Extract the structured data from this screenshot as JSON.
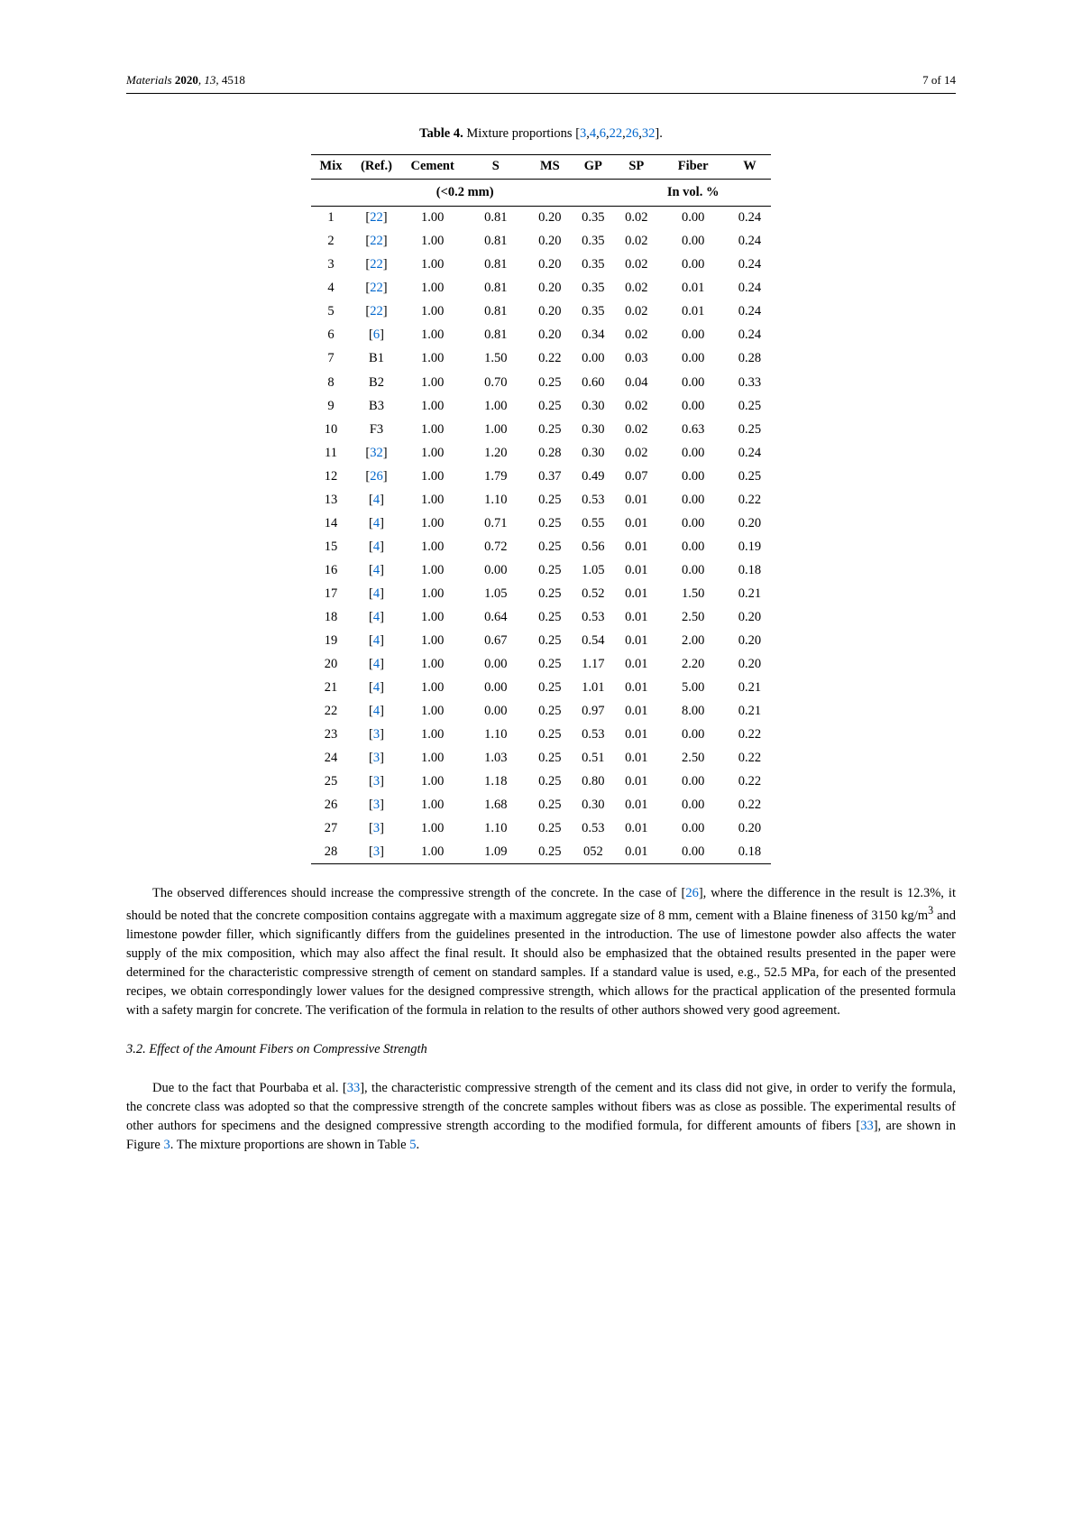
{
  "header": {
    "journal": "Materials",
    "year": "2020",
    "volume": "13",
    "article": "4518",
    "page": "7 of 14"
  },
  "table4": {
    "caption_prefix": "Table 4.",
    "caption_text": " Mixture proportions [",
    "caption_refs": [
      "3",
      "4",
      "6",
      "22",
      "26",
      "32"
    ],
    "caption_suffix": "].",
    "columns": [
      "Mix",
      "(Ref.)",
      "Cement",
      "S",
      "MS",
      "GP",
      "SP",
      "Fiber",
      "W"
    ],
    "subheader_left": "(<0.2 mm)",
    "subheader_right": "In vol. %",
    "rows": [
      {
        "mix": "1",
        "ref": "[22]",
        "ref_is_link": true,
        "cement": "1.00",
        "s": "0.81",
        "ms": "0.20",
        "gp": "0.35",
        "sp": "0.02",
        "fiber": "0.00",
        "w": "0.24"
      },
      {
        "mix": "2",
        "ref": "[22]",
        "ref_is_link": true,
        "cement": "1.00",
        "s": "0.81",
        "ms": "0.20",
        "gp": "0.35",
        "sp": "0.02",
        "fiber": "0.00",
        "w": "0.24"
      },
      {
        "mix": "3",
        "ref": "[22]",
        "ref_is_link": true,
        "cement": "1.00",
        "s": "0.81",
        "ms": "0.20",
        "gp": "0.35",
        "sp": "0.02",
        "fiber": "0.00",
        "w": "0.24"
      },
      {
        "mix": "4",
        "ref": "[22]",
        "ref_is_link": true,
        "cement": "1.00",
        "s": "0.81",
        "ms": "0.20",
        "gp": "0.35",
        "sp": "0.02",
        "fiber": "0.01",
        "w": "0.24"
      },
      {
        "mix": "5",
        "ref": "[22]",
        "ref_is_link": true,
        "cement": "1.00",
        "s": "0.81",
        "ms": "0.20",
        "gp": "0.35",
        "sp": "0.02",
        "fiber": "0.01",
        "w": "0.24"
      },
      {
        "mix": "6",
        "ref": "[6]",
        "ref_is_link": true,
        "cement": "1.00",
        "s": "0.81",
        "ms": "0.20",
        "gp": "0.34",
        "sp": "0.02",
        "fiber": "0.00",
        "w": "0.24"
      },
      {
        "mix": "7",
        "ref": "B1",
        "ref_is_link": false,
        "cement": "1.00",
        "s": "1.50",
        "ms": "0.22",
        "gp": "0.00",
        "sp": "0.03",
        "fiber": "0.00",
        "w": "0.28"
      },
      {
        "mix": "8",
        "ref": "B2",
        "ref_is_link": false,
        "cement": "1.00",
        "s": "0.70",
        "ms": "0.25",
        "gp": "0.60",
        "sp": "0.04",
        "fiber": "0.00",
        "w": "0.33"
      },
      {
        "mix": "9",
        "ref": "B3",
        "ref_is_link": false,
        "cement": "1.00",
        "s": "1.00",
        "ms": "0.25",
        "gp": "0.30",
        "sp": "0.02",
        "fiber": "0.00",
        "w": "0.25"
      },
      {
        "mix": "10",
        "ref": "F3",
        "ref_is_link": false,
        "cement": "1.00",
        "s": "1.00",
        "ms": "0.25",
        "gp": "0.30",
        "sp": "0.02",
        "fiber": "0.63",
        "w": "0.25"
      },
      {
        "mix": "11",
        "ref": "[32]",
        "ref_is_link": true,
        "cement": "1.00",
        "s": "1.20",
        "ms": "0.28",
        "gp": "0.30",
        "sp": "0.02",
        "fiber": "0.00",
        "w": "0.24"
      },
      {
        "mix": "12",
        "ref": "[26]",
        "ref_is_link": true,
        "cement": "1.00",
        "s": "1.79",
        "ms": "0.37",
        "gp": "0.49",
        "sp": "0.07",
        "fiber": "0.00",
        "w": "0.25"
      },
      {
        "mix": "13",
        "ref": "[4]",
        "ref_is_link": true,
        "cement": "1.00",
        "s": "1.10",
        "ms": "0.25",
        "gp": "0.53",
        "sp": "0.01",
        "fiber": "0.00",
        "w": "0.22"
      },
      {
        "mix": "14",
        "ref": "[4]",
        "ref_is_link": true,
        "cement": "1.00",
        "s": "0.71",
        "ms": "0.25",
        "gp": "0.55",
        "sp": "0.01",
        "fiber": "0.00",
        "w": "0.20"
      },
      {
        "mix": "15",
        "ref": "[4]",
        "ref_is_link": true,
        "cement": "1.00",
        "s": "0.72",
        "ms": "0.25",
        "gp": "0.56",
        "sp": "0.01",
        "fiber": "0.00",
        "w": "0.19"
      },
      {
        "mix": "16",
        "ref": "[4]",
        "ref_is_link": true,
        "cement": "1.00",
        "s": "0.00",
        "ms": "0.25",
        "gp": "1.05",
        "sp": "0.01",
        "fiber": "0.00",
        "w": "0.18"
      },
      {
        "mix": "17",
        "ref": "[4]",
        "ref_is_link": true,
        "cement": "1.00",
        "s": "1.05",
        "ms": "0.25",
        "gp": "0.52",
        "sp": "0.01",
        "fiber": "1.50",
        "w": "0.21"
      },
      {
        "mix": "18",
        "ref": "[4]",
        "ref_is_link": true,
        "cement": "1.00",
        "s": "0.64",
        "ms": "0.25",
        "gp": "0.53",
        "sp": "0.01",
        "fiber": "2.50",
        "w": "0.20"
      },
      {
        "mix": "19",
        "ref": "[4]",
        "ref_is_link": true,
        "cement": "1.00",
        "s": "0.67",
        "ms": "0.25",
        "gp": "0.54",
        "sp": "0.01",
        "fiber": "2.00",
        "w": "0.20"
      },
      {
        "mix": "20",
        "ref": "[4]",
        "ref_is_link": true,
        "cement": "1.00",
        "s": "0.00",
        "ms": "0.25",
        "gp": "1.17",
        "sp": "0.01",
        "fiber": "2.20",
        "w": "0.20"
      },
      {
        "mix": "21",
        "ref": "[4]",
        "ref_is_link": true,
        "cement": "1.00",
        "s": "0.00",
        "ms": "0.25",
        "gp": "1.01",
        "sp": "0.01",
        "fiber": "5.00",
        "w": "0.21"
      },
      {
        "mix": "22",
        "ref": "[4]",
        "ref_is_link": true,
        "cement": "1.00",
        "s": "0.00",
        "ms": "0.25",
        "gp": "0.97",
        "sp": "0.01",
        "fiber": "8.00",
        "w": "0.21"
      },
      {
        "mix": "23",
        "ref": "[3]",
        "ref_is_link": true,
        "cement": "1.00",
        "s": "1.10",
        "ms": "0.25",
        "gp": "0.53",
        "sp": "0.01",
        "fiber": "0.00",
        "w": "0.22"
      },
      {
        "mix": "24",
        "ref": "[3]",
        "ref_is_link": true,
        "cement": "1.00",
        "s": "1.03",
        "ms": "0.25",
        "gp": "0.51",
        "sp": "0.01",
        "fiber": "2.50",
        "w": "0.22"
      },
      {
        "mix": "25",
        "ref": "[3]",
        "ref_is_link": true,
        "cement": "1.00",
        "s": "1.18",
        "ms": "0.25",
        "gp": "0.80",
        "sp": "0.01",
        "fiber": "0.00",
        "w": "0.22"
      },
      {
        "mix": "26",
        "ref": "[3]",
        "ref_is_link": true,
        "cement": "1.00",
        "s": "1.68",
        "ms": "0.25",
        "gp": "0.30",
        "sp": "0.01",
        "fiber": "0.00",
        "w": "0.22"
      },
      {
        "mix": "27",
        "ref": "[3]",
        "ref_is_link": true,
        "cement": "1.00",
        "s": "1.10",
        "ms": "0.25",
        "gp": "0.53",
        "sp": "0.01",
        "fiber": "0.00",
        "w": "0.20"
      },
      {
        "mix": "28",
        "ref": "[3]",
        "ref_is_link": true,
        "cement": "1.00",
        "s": "1.09",
        "ms": "0.25",
        "gp": "052",
        "sp": "0.01",
        "fiber": "0.00",
        "w": "0.18"
      }
    ]
  },
  "para1_segments": [
    {
      "t": "The observed differences should increase the compressive strength of the concrete. In the case of ["
    },
    {
      "t": "26",
      "link": true
    },
    {
      "t": "], where the difference in the result is 12.3%, it should be noted that the concrete composition contains aggregate with a maximum aggregate size of 8 mm, cement with a Blaine fineness of 3150 kg/m"
    },
    {
      "t": "3",
      "sup": true
    },
    {
      "t": " and limestone powder filler, which significantly differs from the guidelines presented in the introduction. The use of limestone powder also affects the water supply of the mix composition, which may also affect the final result. It should also be emphasized that the obtained results presented in the paper were determined for the characteristic compressive strength of cement on standard samples. If a standard value is used, e.g., 52.5 MPa, for each of the presented recipes, we obtain correspondingly lower values for the designed compressive strength, which allows for the practical application of the presented formula with a safety margin for concrete. The verification of the formula in relation to the results of other authors showed very good agreement."
    }
  ],
  "section_heading": "3.2. Effect of the Amount Fibers on Compressive Strength",
  "para2_segments": [
    {
      "t": "Due to the fact that Pourbaba et al. ["
    },
    {
      "t": "33",
      "link": true
    },
    {
      "t": "], the characteristic compressive strength of the cement and its class did not give, in order to verify the formula, the concrete class was adopted so that the compressive strength of the concrete samples without fibers was as close as possible. The experimental results of other authors for specimens and the designed compressive strength according to the modified formula, for different amounts of fibers ["
    },
    {
      "t": "33",
      "link": true
    },
    {
      "t": "], are shown in Figure "
    },
    {
      "t": "3",
      "link": true
    },
    {
      "t": ". The mixture proportions are shown in Table "
    },
    {
      "t": "5",
      "link": true
    },
    {
      "t": "."
    }
  ]
}
